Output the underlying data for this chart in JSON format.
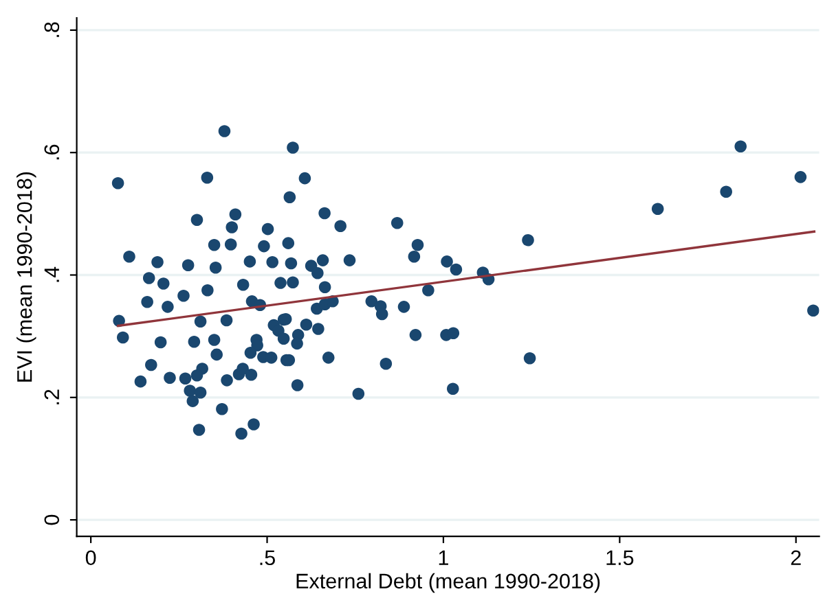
{
  "chart_data": {
    "type": "scatter",
    "xlabel": "External Debt (mean 1990-2018)",
    "ylabel": "EVI (mean 1990-2018)",
    "xlim": [
      -0.04,
      2.066
    ],
    "ylim": [
      -0.027,
      0.82
    ],
    "xticks": [
      0,
      {
        "value": 0.5,
        "label": ".5"
      },
      1,
      1.5,
      2
    ],
    "yticks": [
      0,
      {
        "value": 0.2,
        "label": ".2"
      },
      {
        "value": 0.4,
        "label": ".4"
      },
      {
        "value": 0.6,
        "label": ".6"
      },
      {
        "value": 0.8,
        "label": ".8"
      }
    ],
    "grid": "y",
    "series": [
      {
        "color": "#1a476f",
        "marker": "circle",
        "x": [
          0.379,
          0.077,
          0.33,
          0.301,
          0.41,
          0.4,
          0.35,
          0.397,
          0.502,
          0.491,
          0.109,
          0.189,
          0.276,
          0.354,
          0.451,
          0.515,
          0.165,
          0.206,
          0.331,
          0.432,
          0.538,
          0.16,
          0.218,
          0.263,
          0.457,
          0.48,
          0.08,
          0.311,
          0.385,
          0.547,
          0.091,
          0.198,
          0.293,
          0.35,
          0.47,
          0.519,
          0.532,
          0.547,
          0.472,
          0.357,
          0.453,
          0.489,
          0.512,
          0.555,
          0.171,
          0.141,
          0.224,
          0.268,
          0.316,
          0.301,
          0.386,
          0.42,
          0.431,
          0.455,
          0.281,
          0.311,
          0.289,
          0.372,
          0.307,
          0.427,
          0.462,
          0.564,
          0.573,
          0.607,
          0.663,
          0.708,
          0.56,
          0.568,
          0.625,
          0.658,
          0.643,
          0.734,
          0.573,
          0.664,
          0.641,
          0.664,
          0.686,
          0.553,
          0.588,
          0.585,
          0.611,
          0.645,
          0.562,
          0.674,
          0.586,
          0.759,
          0.869,
          0.927,
          0.917,
          1.01,
          1.036,
          0.957,
          0.796,
          0.822,
          0.826,
          0.888,
          0.921,
          1.008,
          1.028,
          0.837,
          1.027,
          1.112,
          1.128,
          1.24,
          1.245,
          1.608,
          1.802,
          1.843,
          2.013,
          2.049
        ],
        "values": [
          0.635,
          0.55,
          0.559,
          0.49,
          0.499,
          0.478,
          0.449,
          0.45,
          0.475,
          0.447,
          0.43,
          0.421,
          0.416,
          0.412,
          0.422,
          0.421,
          0.395,
          0.386,
          0.375,
          0.384,
          0.387,
          0.356,
          0.348,
          0.366,
          0.357,
          0.351,
          0.325,
          0.324,
          0.326,
          0.327,
          0.298,
          0.29,
          0.291,
          0.294,
          0.294,
          0.318,
          0.309,
          0.296,
          0.285,
          0.27,
          0.273,
          0.266,
          0.265,
          0.261,
          0.253,
          0.226,
          0.232,
          0.231,
          0.247,
          0.236,
          0.228,
          0.238,
          0.247,
          0.237,
          0.211,
          0.208,
          0.194,
          0.181,
          0.147,
          0.141,
          0.156,
          0.527,
          0.608,
          0.558,
          0.501,
          0.48,
          0.452,
          0.419,
          0.415,
          0.424,
          0.403,
          0.424,
          0.388,
          0.38,
          0.345,
          0.352,
          0.357,
          0.328,
          0.302,
          0.288,
          0.319,
          0.312,
          0.261,
          0.265,
          0.22,
          0.206,
          0.485,
          0.449,
          0.43,
          0.422,
          0.409,
          0.375,
          0.357,
          0.349,
          0.336,
          0.348,
          0.302,
          0.302,
          0.305,
          0.255,
          0.214,
          0.404,
          0.393,
          0.457,
          0.264,
          0.508,
          0.536,
          0.61,
          0.56,
          0.342
        ]
      },
      {
        "type": "line",
        "color": "#90353b",
        "x": [
          0.077,
          2.052
        ],
        "values": [
          0.317,
          0.471
        ]
      }
    ]
  }
}
